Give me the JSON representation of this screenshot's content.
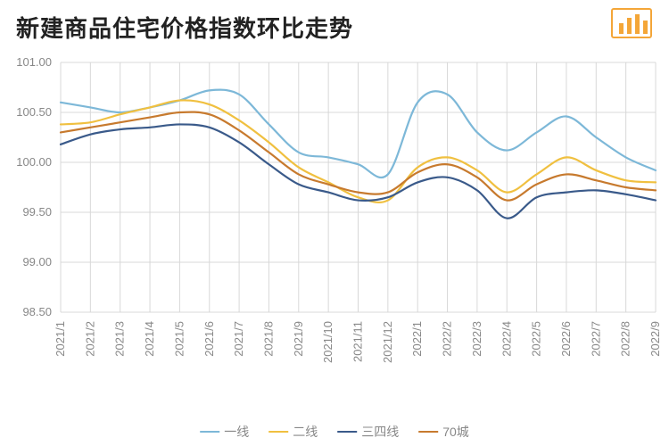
{
  "title": "新建商品住宅价格指数环比走势",
  "chart": {
    "type": "line",
    "background_color": "#ffffff",
    "grid_color": "#d8d8d8",
    "grid_on": true,
    "axis_text_color": "#888888",
    "axis_fontsize": 13,
    "title_fontsize": 26,
    "title_color": "#222222",
    "line_width": 2.2,
    "ylim": [
      98.5,
      101.0
    ],
    "ytick_step": 0.5,
    "yticks": [
      "101.00",
      "100.50",
      "100.00",
      "99.50",
      "99.00",
      "98.50"
    ],
    "x_labels": [
      "2021/1",
      "2021/2",
      "2021/3",
      "2021/4",
      "2021/5",
      "2021/6",
      "2021/7",
      "2021/8",
      "2021/9",
      "2021/10",
      "2021/11",
      "2021/12",
      "2022/1",
      "2022/2",
      "2022/3",
      "2022/4",
      "2022/5",
      "2022/6",
      "2022/7",
      "2022/8",
      "2022/9"
    ],
    "x_label_rotation": 90,
    "logo_color": "#f4a638",
    "series": [
      {
        "name": "一线",
        "color": "#7db8d8",
        "values": [
          100.6,
          100.55,
          100.5,
          100.55,
          100.62,
          100.72,
          100.68,
          100.38,
          100.1,
          100.05,
          99.98,
          99.88,
          100.6,
          100.68,
          100.3,
          100.12,
          100.3,
          100.46,
          100.25,
          100.05,
          99.92
        ]
      },
      {
        "name": "二线",
        "color": "#f0c040",
        "values": [
          100.38,
          100.4,
          100.48,
          100.55,
          100.62,
          100.58,
          100.42,
          100.2,
          99.95,
          99.8,
          99.65,
          99.62,
          99.95,
          100.05,
          99.92,
          99.7,
          99.88,
          100.05,
          99.92,
          99.82,
          99.8
        ]
      },
      {
        "name": "三四线",
        "color": "#3a5a8a",
        "values": [
          100.18,
          100.28,
          100.33,
          100.35,
          100.38,
          100.35,
          100.2,
          99.98,
          99.78,
          99.7,
          99.62,
          99.65,
          99.8,
          99.85,
          99.72,
          99.44,
          99.65,
          99.7,
          99.72,
          99.68,
          99.62
        ]
      },
      {
        "name": "70城",
        "color": "#c77a2e",
        "values": [
          100.3,
          100.35,
          100.4,
          100.45,
          100.5,
          100.48,
          100.32,
          100.1,
          99.88,
          99.78,
          99.7,
          99.7,
          99.9,
          99.98,
          99.85,
          99.62,
          99.78,
          99.88,
          99.82,
          99.75,
          99.72
        ]
      }
    ]
  }
}
